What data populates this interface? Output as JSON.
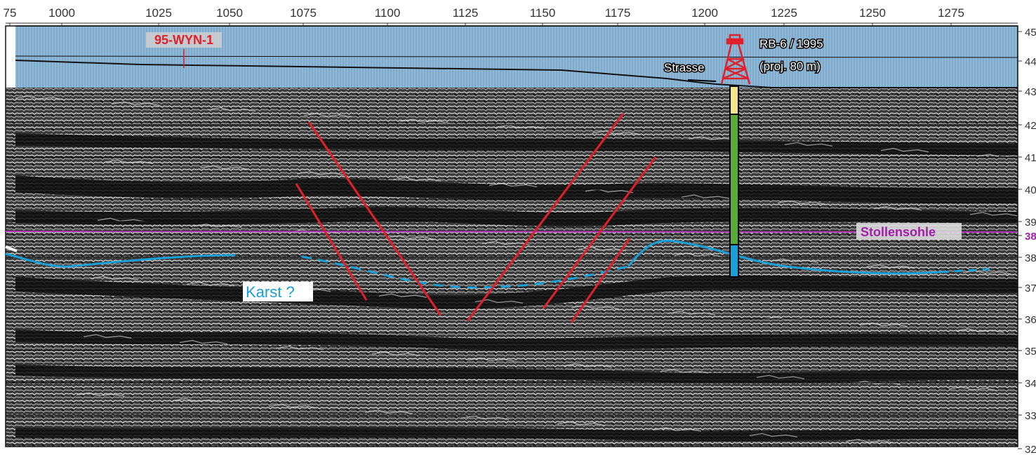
{
  "top_axis": {
    "ticks": [
      "75",
      "1000",
      "1025",
      "1050",
      "1075",
      "1100",
      "1125",
      "1150",
      "1175",
      "1200",
      "1225",
      "1250",
      "1275"
    ]
  },
  "right_axis": {
    "ticks": [
      "45",
      "44",
      "43",
      "42",
      "41",
      "40",
      "39",
      "38",
      "38",
      "37",
      "36",
      "35",
      "34",
      "33",
      "32"
    ]
  },
  "labels": {
    "borehole_95": "95-WYN-1",
    "borehole_rb6": "RB-6 / 1995",
    "borehole_rb6_proj": "(proj. 80 m)",
    "road": "Strasse",
    "gallery_floor": "Stollensohle",
    "karst": "Karst ?"
  },
  "colors": {
    "sky": "#8fb7d6",
    "seismic_dark": "#111111",
    "seismic_light": "#e8e8e8",
    "fault": "#e0202a",
    "horizon": "#1aa0d8",
    "gallery_line": "#b030b8",
    "log_yellow": "#f4e58a",
    "log_green": "#5aaa3a",
    "log_blue": "#1aa0d8",
    "label_red": "#e0202a",
    "label_purple": "#a020a8"
  },
  "borehole_log": [
    {
      "lithology": "yellow",
      "color": "#f4e58a"
    },
    {
      "lithology": "green",
      "color": "#5aaa3a"
    },
    {
      "lithology": "blue",
      "color": "#1aa0d8"
    }
  ]
}
